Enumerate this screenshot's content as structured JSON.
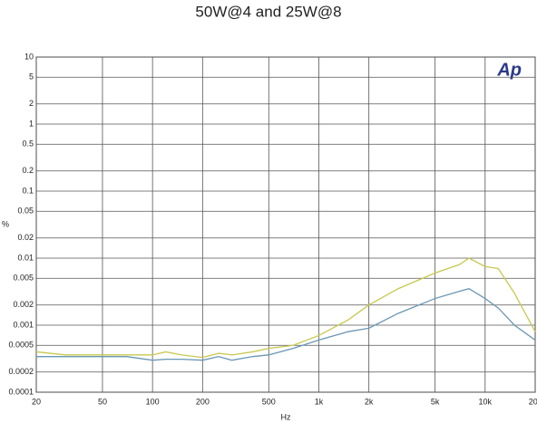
{
  "chart_data": {
    "type": "line",
    "title": "50W@4 and 25W@8",
    "xlabel": "Hz",
    "ylabel": "%",
    "logo": "Ap",
    "x": [
      20,
      30,
      50,
      70,
      100,
      120,
      150,
      200,
      250,
      300,
      400,
      500,
      700,
      1000,
      1500,
      2000,
      3000,
      5000,
      7000,
      8000,
      10000,
      12000,
      15000,
      20000
    ],
    "series": [
      {
        "color": "#c8c850",
        "values": [
          0.0004,
          0.00036,
          0.00036,
          0.00036,
          0.00036,
          0.0004,
          0.00036,
          0.00033,
          0.00038,
          0.00036,
          0.0004,
          0.00045,
          0.0005,
          0.0007,
          0.0012,
          0.002,
          0.0035,
          0.006,
          0.008,
          0.01,
          0.0075,
          0.007,
          0.003,
          0.0008
        ]
      },
      {
        "color": "#6a96b4",
        "values": [
          0.00034,
          0.00034,
          0.00034,
          0.00034,
          0.0003,
          0.00031,
          0.00031,
          0.0003,
          0.00034,
          0.0003,
          0.00034,
          0.00036,
          0.00045,
          0.0006,
          0.0008,
          0.0009,
          0.0015,
          0.0025,
          0.0032,
          0.0035,
          0.0025,
          0.0018,
          0.001,
          0.0006
        ]
      }
    ],
    "xlim": [
      20,
      20000
    ],
    "ylim": [
      0.0001,
      10
    ],
    "xlog": true,
    "ylog": true,
    "grid": true,
    "xticks": [
      20,
      50,
      100,
      200,
      500,
      {
        "value": 1000,
        "label": "1k"
      },
      {
        "value": 2000,
        "label": "2k"
      },
      {
        "value": 5000,
        "label": "5k"
      },
      {
        "value": 10000,
        "label": "10k"
      },
      {
        "value": 20000,
        "label": "20k"
      }
    ],
    "yticks": [
      10,
      5,
      2,
      1,
      0.5,
      0.2,
      0.1,
      0.05,
      0.02,
      0.01,
      0.005,
      0.002,
      0.001,
      0.0005,
      0.0002,
      0.0001
    ]
  }
}
